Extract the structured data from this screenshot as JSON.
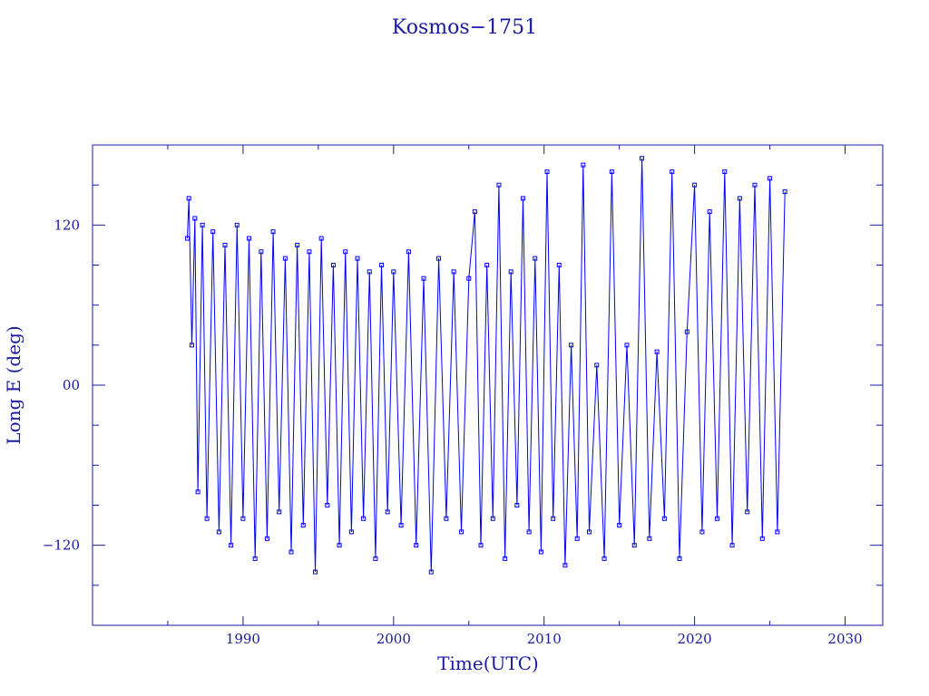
{
  "chart_data": {
    "type": "scatter",
    "title": "Kosmos−1751",
    "xlabel": "Time(UTC)",
    "ylabel": "Long E (deg)",
    "xlim": [
      1980.0,
      2032.5
    ],
    "ylim": [
      -180,
      180
    ],
    "x_ticks": [
      1990,
      2000,
      2010,
      2020,
      2030
    ],
    "x_tick_labels": [
      "1990",
      "2000",
      "2010",
      "2020",
      "2030"
    ],
    "y_ticks": [
      -120,
      0,
      120
    ],
    "y_tick_labels": [
      "−120",
      "00",
      "120"
    ],
    "grid": false,
    "legend": "none",
    "colors": {
      "axis": "#1a1aa0",
      "series": "#0000ff"
    },
    "series": [
      {
        "marker": "square",
        "x": [
          1986.3,
          1986.4,
          1986.6,
          1986.8,
          1987.0,
          1987.3,
          1987.6,
          1988.0,
          1988.4,
          1988.8,
          1989.2,
          1989.6,
          1990.0,
          1990.4,
          1990.8,
          1991.2,
          1991.6,
          1992.0,
          1992.4,
          1992.8,
          1993.2,
          1993.6,
          1994.0,
          1994.4,
          1994.8,
          1995.2,
          1995.6,
          1996.0,
          1996.4,
          1996.8,
          1997.2,
          1997.6,
          1998.0,
          1998.4,
          1998.8,
          1999.2,
          1999.6,
          2000.0,
          2000.5,
          2001.0,
          2001.5,
          2002.0,
          2002.5,
          2003.0,
          2003.5,
          2004.0,
          2004.5,
          2005.0,
          2005.4,
          2005.8,
          2006.2,
          2006.6,
          2007.0,
          2007.4,
          2007.8,
          2008.2,
          2008.6,
          2009.0,
          2009.4,
          2009.8,
          2010.2,
          2010.6,
          2011.0,
          2011.4,
          2011.8,
          2012.2,
          2012.6,
          2013.0,
          2013.5,
          2014.0,
          2014.5,
          2015.0,
          2015.5,
          2016.0,
          2016.5,
          2017.0,
          2017.5,
          2018.0,
          2018.5,
          2019.0,
          2019.5,
          2020.0,
          2020.5,
          2021.0,
          2021.5,
          2022.0,
          2022.5,
          2023.0,
          2023.5,
          2024.0,
          2024.5,
          2025.0,
          2025.5,
          2026.0
        ],
        "y": [
          110,
          140,
          30,
          125,
          -80,
          120,
          -100,
          115,
          -110,
          105,
          -120,
          120,
          -100,
          110,
          -130,
          100,
          -115,
          115,
          -95,
          95,
          -125,
          105,
          -105,
          100,
          -140,
          110,
          -90,
          90,
          -120,
          100,
          -110,
          95,
          -100,
          85,
          -130,
          90,
          -95,
          85,
          -105,
          100,
          -120,
          80,
          -140,
          95,
          -100,
          85,
          -110,
          80,
          130,
          -120,
          90,
          -100,
          150,
          -130,
          85,
          -90,
          140,
          -110,
          95,
          -125,
          160,
          -100,
          90,
          -135,
          30,
          -115,
          165,
          -110,
          15,
          -130,
          160,
          -105,
          30,
          -120,
          170,
          -115,
          25,
          -100,
          160,
          -130,
          40,
          150,
          -110,
          130,
          -100,
          160,
          -120,
          140,
          -95,
          150,
          -115,
          155,
          -110,
          145
        ]
      }
    ]
  }
}
